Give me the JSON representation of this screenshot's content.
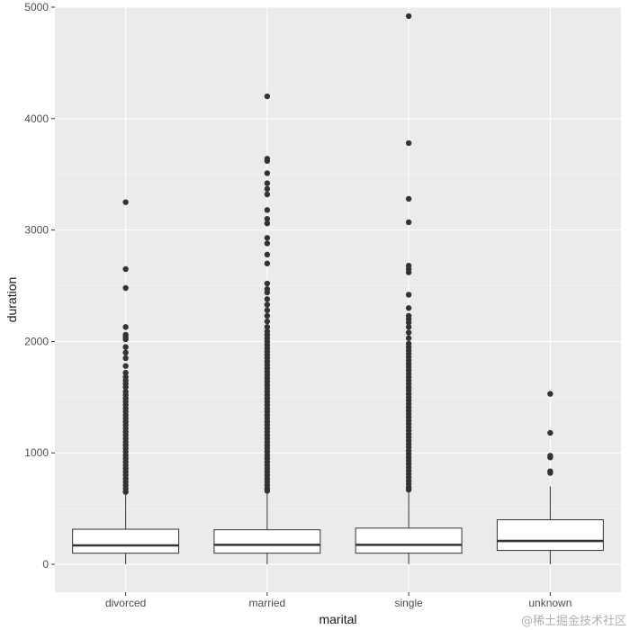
{
  "chart_data": {
    "type": "boxplot",
    "xlabel": "marital",
    "ylabel": "duration",
    "ylim": [
      -250,
      5000
    ],
    "yticks": [
      0,
      1000,
      2000,
      3000,
      4000,
      5000
    ],
    "grid": true,
    "categories": [
      "divorced",
      "married",
      "single",
      "unknown"
    ],
    "boxes": [
      {
        "category": "divorced",
        "q1": 100,
        "median": 170,
        "q3": 315,
        "whisker_low": 0,
        "whisker_high": 630,
        "outliers": [
          3250,
          2650,
          2480,
          2130,
          2060,
          2040,
          2020,
          1950,
          1900,
          1850,
          1780,
          1720,
          1680,
          1650,
          1620,
          1590,
          1550,
          1520,
          1490,
          1460,
          1430,
          1400,
          1370,
          1340,
          1310,
          1280,
          1250,
          1220,
          1190,
          1160,
          1130,
          1100,
          1070,
          1040,
          1010,
          980,
          950,
          920,
          890,
          860,
          830,
          800,
          770,
          740,
          710,
          680,
          650
        ]
      },
      {
        "category": "married",
        "q1": 100,
        "median": 175,
        "q3": 310,
        "whisker_low": 0,
        "whisker_high": 640,
        "outliers": [
          4200,
          3640,
          3620,
          3510,
          3420,
          3370,
          3320,
          3180,
          3100,
          3060,
          2930,
          2880,
          2780,
          2700,
          2520,
          2470,
          2440,
          2380,
          2330,
          2280,
          2230,
          2180,
          2130,
          2090,
          2060,
          2030,
          2000,
          1970,
          1940,
          1910,
          1880,
          1850,
          1820,
          1790,
          1760,
          1730,
          1700,
          1670,
          1640,
          1610,
          1580,
          1550,
          1520,
          1490,
          1460,
          1430,
          1400,
          1370,
          1340,
          1310,
          1280,
          1250,
          1220,
          1190,
          1160,
          1130,
          1100,
          1070,
          1040,
          1010,
          980,
          950,
          920,
          890,
          860,
          830,
          800,
          770,
          740,
          710,
          680,
          660
        ]
      },
      {
        "category": "single",
        "q1": 100,
        "median": 175,
        "q3": 325,
        "whisker_low": 0,
        "whisker_high": 665,
        "outliers": [
          4920,
          3780,
          3280,
          3070,
          2680,
          2650,
          2620,
          2420,
          2300,
          2230,
          2200,
          2170,
          2130,
          2080,
          2030,
          1980,
          1950,
          1920,
          1890,
          1860,
          1830,
          1800,
          1770,
          1740,
          1710,
          1680,
          1650,
          1620,
          1590,
          1560,
          1530,
          1500,
          1470,
          1440,
          1410,
          1380,
          1350,
          1320,
          1290,
          1260,
          1230,
          1200,
          1170,
          1140,
          1110,
          1080,
          1050,
          1020,
          990,
          960,
          930,
          900,
          870,
          840,
          810,
          780,
          750,
          720,
          690,
          670
        ]
      },
      {
        "category": "unknown",
        "q1": 125,
        "median": 210,
        "q3": 400,
        "whisker_low": 0,
        "whisker_high": 700,
        "outliers": [
          1530,
          1180,
          975,
          960,
          835,
          820
        ]
      }
    ]
  },
  "watermark": "@稀土掘金技术社区"
}
